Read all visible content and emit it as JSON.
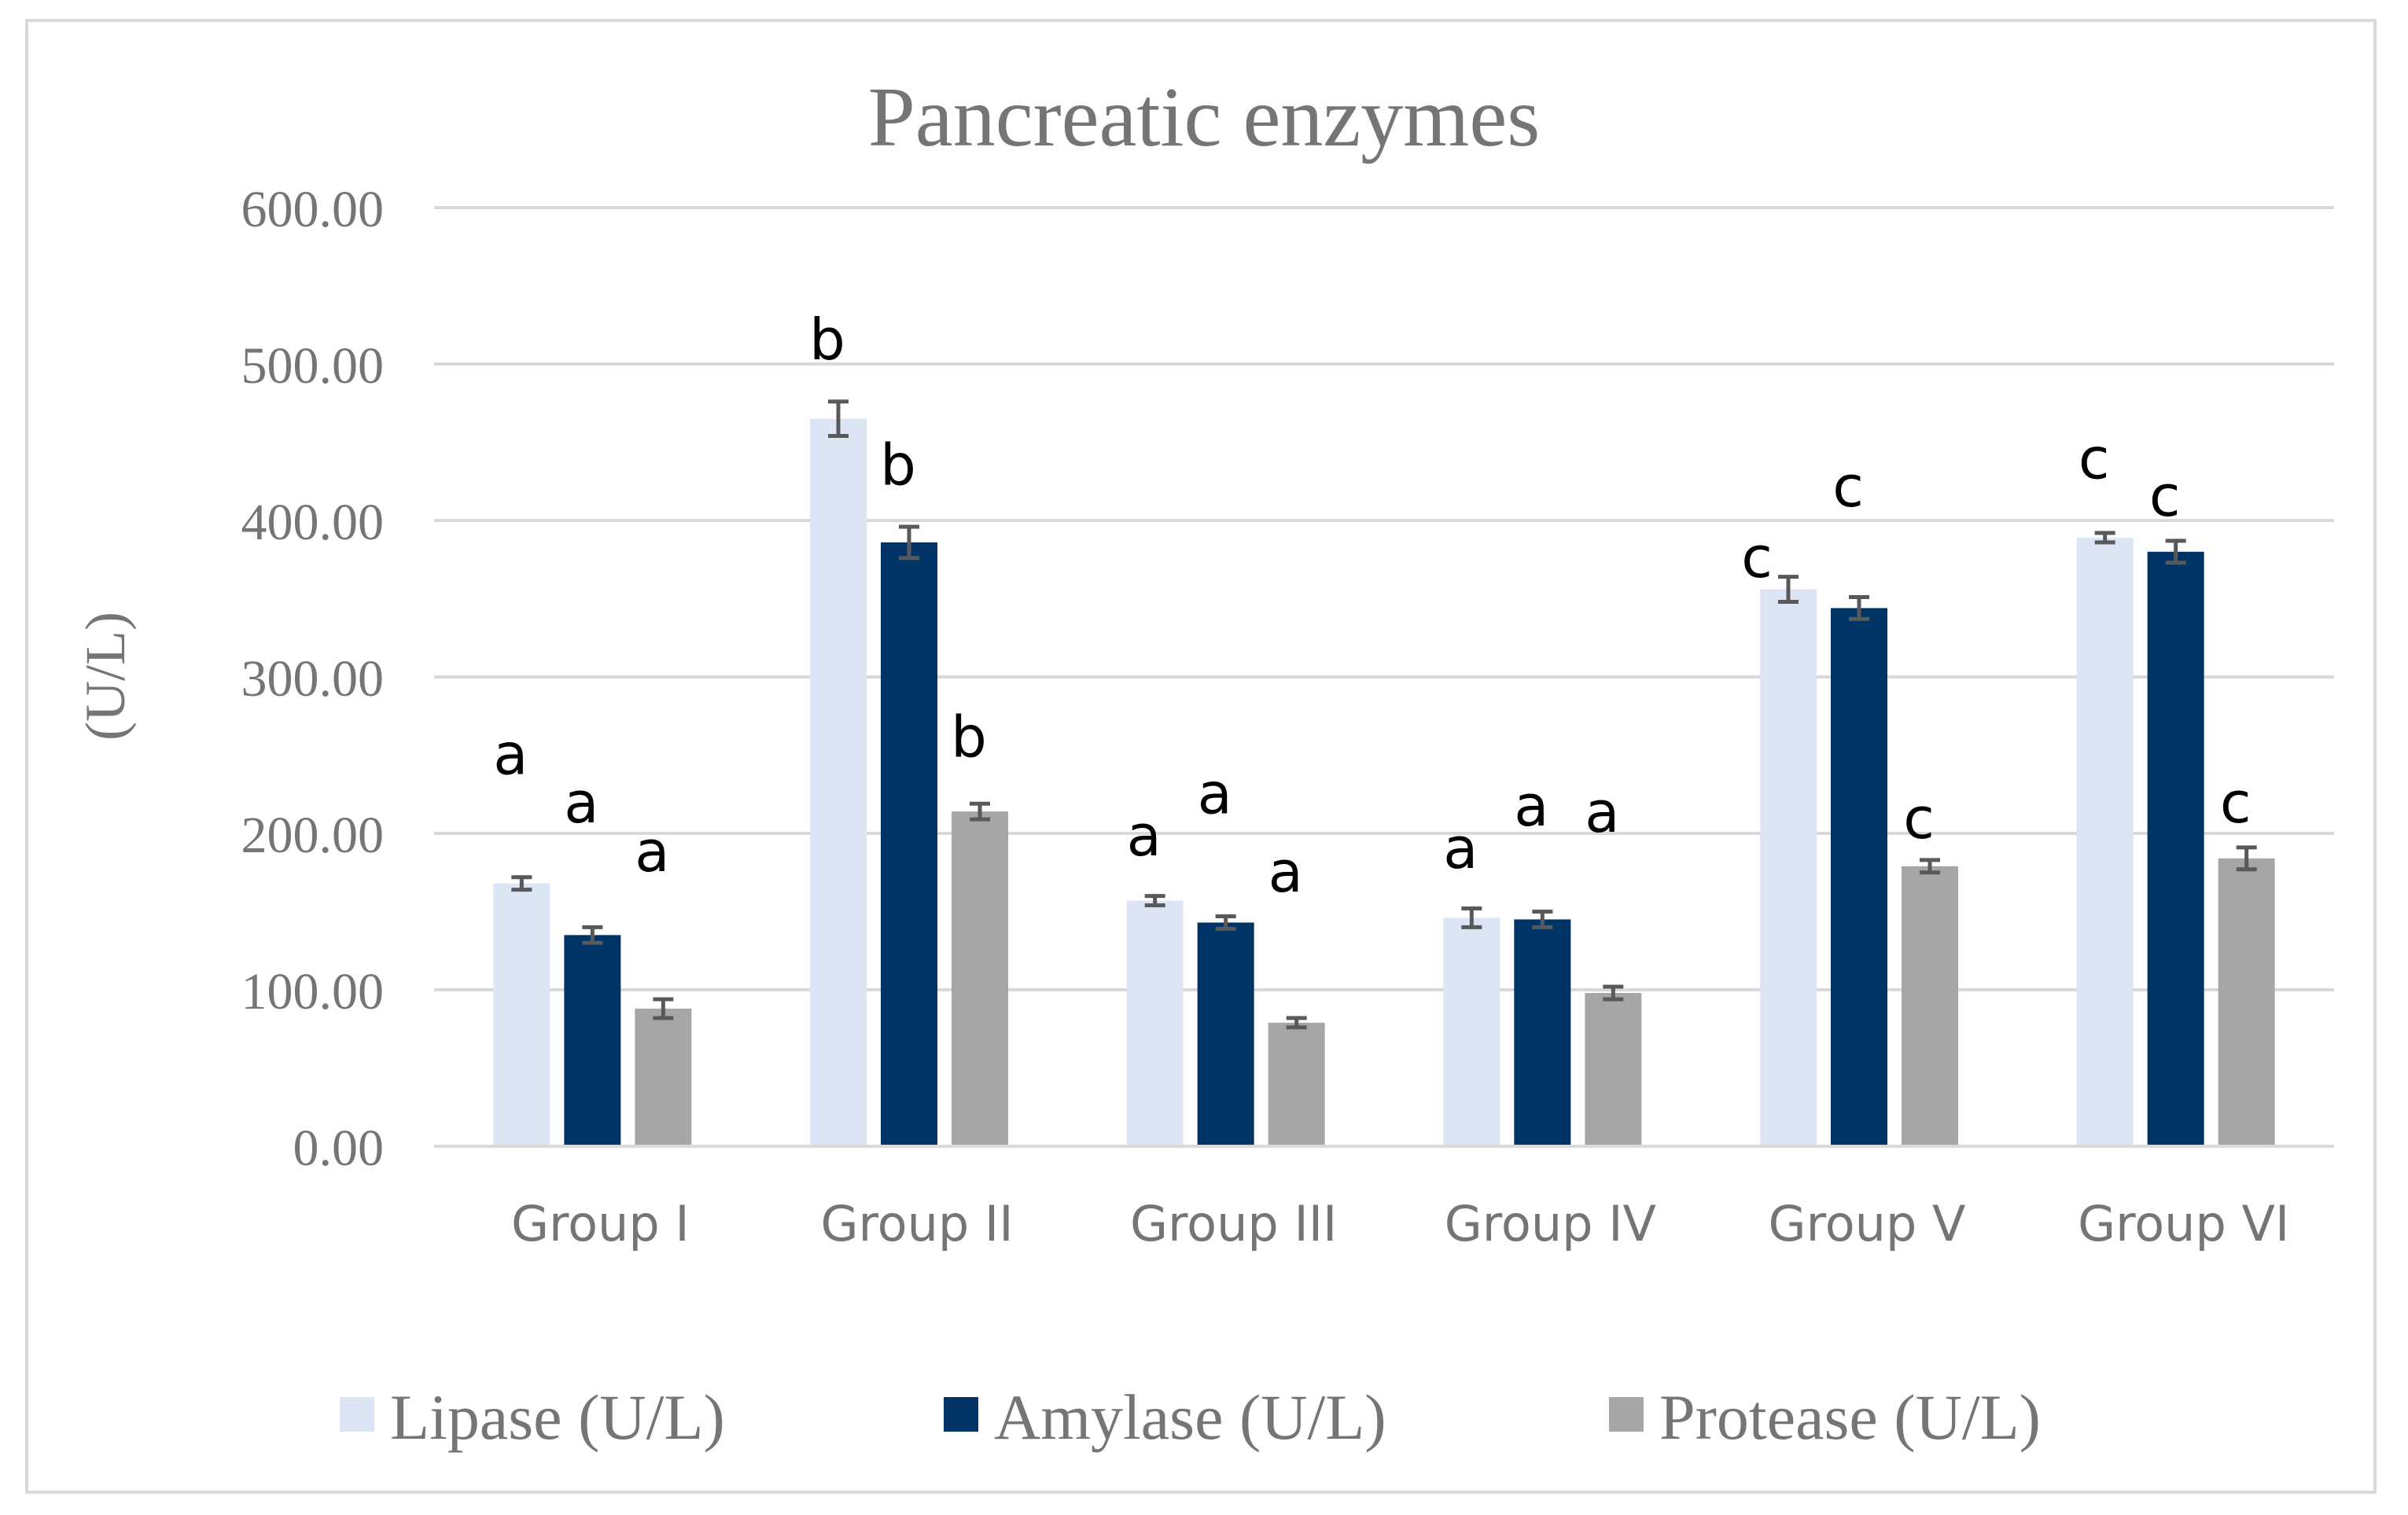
{
  "chart_data": {
    "type": "bar",
    "title": "Pancreatic enzymes",
    "xlabel": "",
    "ylabel": "(U/L)",
    "ylim": [
      0,
      600
    ],
    "yticks": [
      0,
      100,
      200,
      300,
      400,
      500,
      600
    ],
    "ytick_labels": [
      "0.00",
      "100.00",
      "200.00",
      "300.00",
      "400.00",
      "500.00",
      "600.00"
    ],
    "grid": true,
    "legend_position": "bottom",
    "categories": [
      "Group I",
      "Group II",
      "Group III",
      "Group IV",
      "Group V",
      "Group VI"
    ],
    "series": [
      {
        "name": "Lipase (U/L)",
        "color": "#dbe5f3",
        "values": [
          168,
          465,
          157,
          146,
          356,
          389
        ],
        "errors": [
          4,
          11,
          3,
          6,
          8,
          3
        ],
        "letters": [
          "a",
          "b",
          "a",
          "a",
          "c",
          "c"
        ],
        "letter_values": [
          250,
          515,
          198,
          190,
          376,
          439
        ]
      },
      {
        "name": "Amylase (U/L)",
        "color": "#003366",
        "values": [
          135,
          386,
          143,
          145,
          344,
          380
        ],
        "errors": [
          5,
          10,
          4,
          5,
          7,
          7
        ],
        "letters": [
          "a",
          "b",
          "a",
          "a",
          "c",
          "c"
        ],
        "letter_values": [
          219,
          435,
          225,
          217,
          421,
          415
        ]
      },
      {
        "name": "Protease (U/L)",
        "color": "#a6a6a6",
        "values": [
          88,
          214,
          79,
          98,
          179,
          184
        ],
        "errors": [
          6,
          5,
          3,
          4,
          4,
          7
        ],
        "letters": [
          "a",
          "b",
          "a",
          "a",
          "c",
          "c"
        ],
        "letter_values": [
          188,
          261,
          175,
          213,
          209,
          219
        ]
      }
    ]
  }
}
